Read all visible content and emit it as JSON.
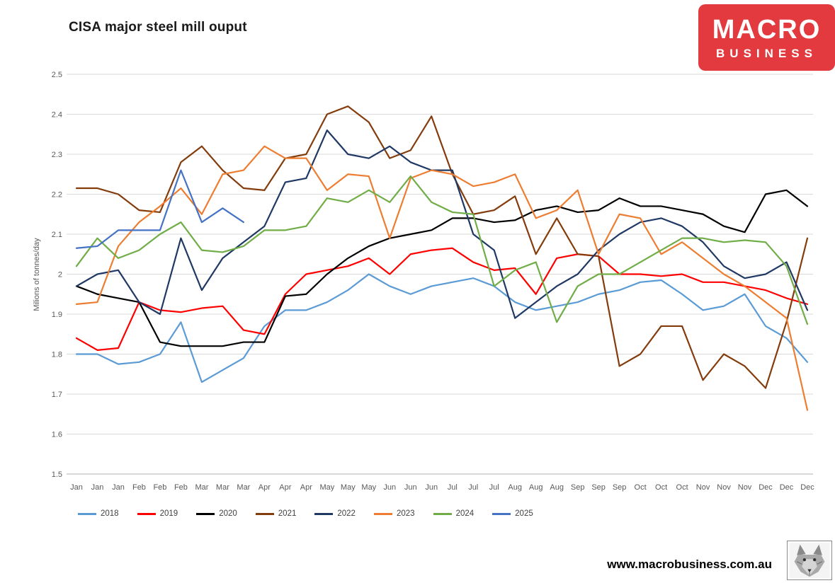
{
  "header": {
    "title": "CISA major steel mill ouput"
  },
  "logo": {
    "line1": "MACRO",
    "line2": "BUSINESS",
    "background_color": "#e23a3e",
    "text_color": "#ffffff"
  },
  "footer": {
    "url": "www.macrobusiness.com.au",
    "wolf_icon": "wolf-sketch"
  },
  "chart_data": {
    "type": "line",
    "title": "CISA major steel mill ouput",
    "xlabel": "",
    "ylabel": "Milions of tonnes/day",
    "ylim": [
      1.5,
      2.5
    ],
    "ytick_step": 0.1,
    "ytick_labels": [
      "1.5",
      "1.6",
      "1.7",
      "1.8",
      "1.9",
      "2",
      "2.1",
      "2.2",
      "2.3",
      "2.4",
      "2.5"
    ],
    "grid": true,
    "legend_position": "bottom",
    "x_labels": [
      "Jan",
      "Jan",
      "Jan",
      "Feb",
      "Feb",
      "Feb",
      "Mar",
      "Mar",
      "Mar",
      "Apr",
      "Apr",
      "Apr",
      "May",
      "May",
      "May",
      "Jun",
      "Jun",
      "Jun",
      "Jul",
      "Jul",
      "Jul",
      "Aug",
      "Aug",
      "Aug",
      "Sep",
      "Sep",
      "Sep",
      "Oct",
      "Oct",
      "Oct",
      "Nov",
      "Nov",
      "Nov",
      "Dec",
      "Dec",
      "Dec"
    ],
    "series": [
      {
        "name": "2018",
        "color": "#5B9BD5",
        "values": [
          1.8,
          1.8,
          1.775,
          1.78,
          1.8,
          1.88,
          1.73,
          1.76,
          1.79,
          1.87,
          1.91,
          1.91,
          1.93,
          1.96,
          2.0,
          1.97,
          1.95,
          1.97,
          1.98,
          1.99,
          1.97,
          1.93,
          1.91,
          1.92,
          1.93,
          1.95,
          1.96,
          1.98,
          1.985,
          1.95,
          1.91,
          1.92,
          1.95,
          1.87,
          1.84,
          1.78
        ]
      },
      {
        "name": "2019",
        "color": "#FF0000",
        "values": [
          1.84,
          1.81,
          1.815,
          1.93,
          1.91,
          1.905,
          1.915,
          1.92,
          1.86,
          1.85,
          1.95,
          2.0,
          2.01,
          2.02,
          2.04,
          2.0,
          2.05,
          2.06,
          2.065,
          2.03,
          2.01,
          2.015,
          1.95,
          2.04,
          2.05,
          2.045,
          2.0,
          2.0,
          1.995,
          2.0,
          1.98,
          1.98,
          1.97,
          1.96,
          1.94,
          1.925
        ]
      },
      {
        "name": "2020",
        "color": "#000000",
        "values": [
          1.97,
          1.95,
          1.94,
          1.93,
          1.83,
          1.82,
          1.82,
          1.82,
          1.83,
          1.83,
          1.945,
          1.95,
          2.0,
          2.04,
          2.07,
          2.09,
          2.1,
          2.11,
          2.14,
          2.14,
          2.13,
          2.135,
          2.16,
          2.17,
          2.155,
          2.16,
          2.19,
          2.17,
          2.17,
          2.16,
          2.15,
          2.12,
          2.105,
          2.2,
          2.21,
          2.17
        ]
      },
      {
        "name": "2021",
        "color": "#843C0C",
        "values": [
          2.215,
          2.215,
          2.2,
          2.16,
          2.155,
          2.28,
          2.32,
          2.26,
          2.215,
          2.21,
          2.29,
          2.3,
          2.4,
          2.42,
          2.38,
          2.29,
          2.31,
          2.395,
          2.25,
          2.15,
          2.16,
          2.195,
          2.05,
          2.14,
          2.05,
          2.045,
          1.77,
          1.8,
          1.87,
          1.87,
          1.735,
          1.8,
          1.77,
          1.715,
          1.88,
          2.09
        ]
      },
      {
        "name": "2022",
        "color": "#1F3864",
        "values": [
          1.97,
          2.0,
          2.01,
          1.93,
          1.9,
          2.09,
          1.96,
          2.04,
          2.08,
          2.12,
          2.23,
          2.24,
          2.36,
          2.3,
          2.29,
          2.32,
          2.28,
          2.26,
          2.26,
          2.1,
          2.06,
          1.89,
          1.93,
          1.97,
          2.0,
          2.06,
          2.1,
          2.13,
          2.14,
          2.12,
          2.08,
          2.02,
          1.99,
          2.0,
          2.03,
          1.91
        ]
      },
      {
        "name": "2023",
        "color": "#ED7D31",
        "values": [
          1.925,
          1.93,
          2.07,
          2.13,
          2.17,
          2.215,
          2.15,
          2.25,
          2.26,
          2.32,
          2.29,
          2.29,
          2.21,
          2.25,
          2.245,
          2.09,
          2.24,
          2.26,
          2.25,
          2.22,
          2.23,
          2.25,
          2.14,
          2.16,
          2.21,
          2.05,
          2.15,
          2.14,
          2.05,
          2.08,
          2.04,
          2.0,
          1.97,
          1.93,
          1.89,
          1.66
        ]
      },
      {
        "name": "2024",
        "color": "#70AD47",
        "values": [
          2.02,
          2.09,
          2.04,
          2.06,
          2.1,
          2.13,
          2.06,
          2.055,
          2.07,
          2.11,
          2.11,
          2.12,
          2.19,
          2.18,
          2.21,
          2.18,
          2.245,
          2.18,
          2.155,
          2.15,
          1.97,
          2.01,
          2.03,
          1.88,
          1.97,
          2.0,
          2.0,
          2.03,
          2.06,
          2.09,
          2.09,
          2.08,
          2.085,
          2.08,
          2.02,
          1.875
        ]
      },
      {
        "name": "2025",
        "color": "#4472C4",
        "values": [
          2.065,
          2.07,
          2.11,
          2.11,
          2.11,
          2.26,
          2.13,
          2.165,
          2.13
        ]
      }
    ]
  }
}
